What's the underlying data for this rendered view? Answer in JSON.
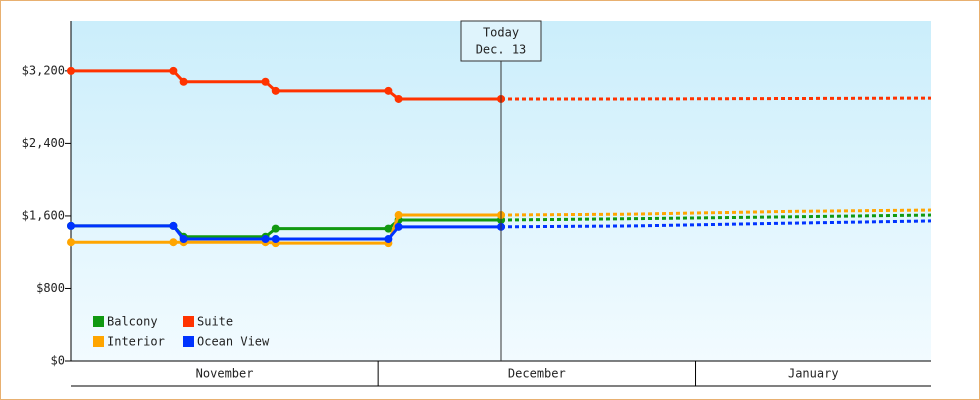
{
  "chart_data": {
    "type": "line",
    "x": [
      0,
      10,
      11,
      19,
      20,
      31,
      32,
      42,
      55,
      70,
      84
    ],
    "xlim": [
      0,
      84
    ],
    "xticks": [
      {
        "value": 0,
        "label": "November"
      },
      {
        "value": 30,
        "label": "December"
      },
      {
        "value": 61,
        "label": "January"
      }
    ],
    "ylim": [
      0,
      3750
    ],
    "yticks": [
      {
        "value": 0,
        "label": "$0"
      },
      {
        "value": 800,
        "label": "$800"
      },
      {
        "value": 1600,
        "label": "$1,600"
      },
      {
        "value": 2400,
        "label": "$2,400"
      },
      {
        "value": 3200,
        "label": "$3,200"
      }
    ],
    "annotation": {
      "x": 42,
      "title": "Today",
      "text": "Dec. 13"
    },
    "forecast_from": 42,
    "legend": "lower left",
    "series": [
      {
        "name": "Balcony",
        "color": "#119911",
        "values": [
          1490,
          1490,
          1370,
          1370,
          1460,
          1460,
          1555,
          1555,
          1570,
          1590,
          1610
        ]
      },
      {
        "name": "Suite",
        "color": "#ff3300",
        "values": [
          3200,
          3200,
          3080,
          3080,
          2980,
          2980,
          2890,
          2890,
          2890,
          2895,
          2900
        ]
      },
      {
        "name": "Interior",
        "color": "#ffa500",
        "values": [
          1310,
          1310,
          1310,
          1310,
          1300,
          1300,
          1610,
          1610,
          1620,
          1650,
          1665
        ]
      },
      {
        "name": "Ocean View",
        "color": "#0033ff",
        "values": [
          1490,
          1490,
          1345,
          1345,
          1345,
          1345,
          1480,
          1480,
          1490,
          1520,
          1545
        ]
      }
    ]
  }
}
